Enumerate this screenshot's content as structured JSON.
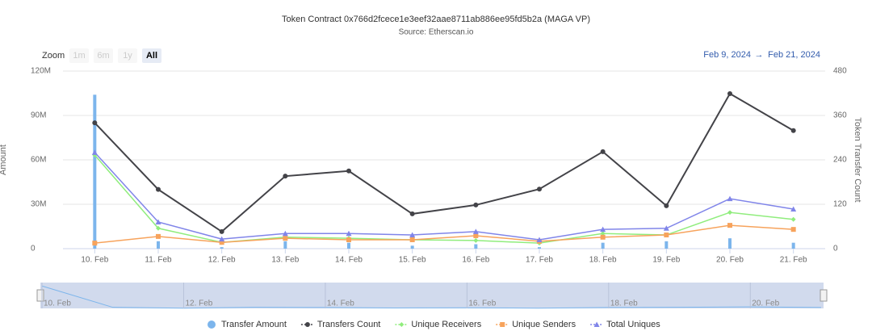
{
  "chart_data": {
    "type": "combo",
    "title": "Token Contract 0x766d2fcece1e3eef32aae8711ab886ee95fd5b2a (MAGA VP)",
    "subtitle": "Source: Etherscan.io",
    "zoom_label": "Zoom",
    "zoom_buttons": [
      "1m",
      "6m",
      "1y",
      "All"
    ],
    "selected_zoom": "All",
    "range_from": "Feb 9, 2024",
    "range_separator": "→",
    "range_to": "Feb 21, 2024",
    "y_label": "Amount",
    "y2_label": "Token Transfer Count",
    "categories": [
      "10. Feb",
      "11. Feb",
      "12. Feb",
      "13. Feb",
      "14. Feb",
      "15. Feb",
      "16. Feb",
      "17. Feb",
      "18. Feb",
      "19. Feb",
      "20. Feb",
      "21. Feb"
    ],
    "ylim": [
      0,
      120000000
    ],
    "yticks": [
      0,
      {
        "value": 30000000,
        "label": "30M"
      },
      {
        "value": 60000000,
        "label": "60M"
      },
      {
        "value": 90000000,
        "label": "90M"
      },
      {
        "value": 120000000,
        "label": "120M"
      }
    ],
    "y2lim": [
      0,
      480
    ],
    "y2ticks": [
      0,
      120,
      240,
      360,
      480
    ],
    "grid": true,
    "series": [
      {
        "name": "Transfer Amount",
        "kind": "column",
        "color": "#7cb5ec",
        "values": [
          104000000,
          5000000,
          1000000,
          5000000,
          4000000,
          2000000,
          3000000,
          1000000,
          4000000,
          5000000,
          7000000,
          4000000
        ]
      },
      {
        "name": "Transfers Count",
        "kind": "line",
        "marker": "circle",
        "axis": "y2",
        "color": "#434348",
        "values": [
          340,
          160,
          46,
          196,
          210,
          94,
          118,
          161,
          262,
          116,
          419,
          319
        ]
      },
      {
        "name": "Unique Receivers",
        "kind": "line",
        "marker": "diamond",
        "axis": "y2",
        "color": "#90ed7d",
        "values": [
          253,
          55,
          17,
          31,
          28,
          24,
          22,
          15,
          41,
          37,
          98,
          79
        ]
      },
      {
        "name": "Unique Senders",
        "kind": "line",
        "marker": "square",
        "axis": "y2",
        "color": "#f7a35c",
        "values": [
          15,
          33,
          17,
          28,
          24,
          24,
          35,
          20,
          31,
          37,
          63,
          52
        ]
      },
      {
        "name": "Total Uniques",
        "kind": "line",
        "marker": "triangle",
        "axis": "y2",
        "color": "#8085e9",
        "values": [
          260,
          72,
          26,
          41,
          41,
          37,
          46,
          24,
          52,
          55,
          135,
          107
        ]
      }
    ],
    "navigator_labels": [
      "10. Feb",
      "12. Feb",
      "14. Feb",
      "16. Feb",
      "18. Feb",
      "20. Feb"
    ]
  }
}
